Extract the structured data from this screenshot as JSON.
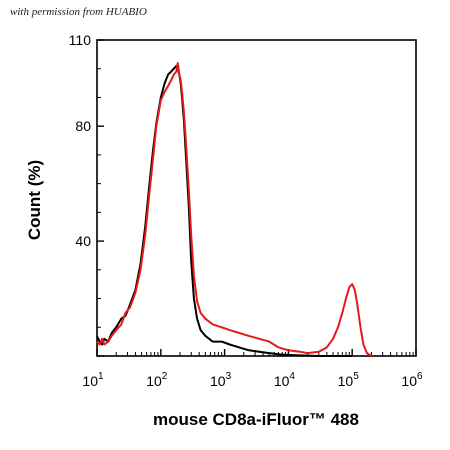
{
  "credit": "with permission from HUABIO",
  "chart_data": {
    "type": "line",
    "xlabel": "mouse CD8a-iFluor™ 488",
    "ylabel": "Count (%)",
    "x_scale": "log",
    "xlim": [
      10,
      1000000
    ],
    "ylim": [
      0,
      110
    ],
    "xticks": [
      10,
      100,
      1000,
      10000,
      100000,
      1000000
    ],
    "xtick_labels": [
      {
        "base": "10",
        "exp": "1"
      },
      {
        "base": "10",
        "exp": "2"
      },
      {
        "base": "10",
        "exp": "3"
      },
      {
        "base": "10",
        "exp": "4"
      },
      {
        "base": "10",
        "exp": "5"
      },
      {
        "base": "10",
        "exp": "6"
      }
    ],
    "yticks": [
      0,
      40,
      80,
      110
    ],
    "ytick_labels": [
      "",
      "40",
      "80",
      "110"
    ],
    "grid": false,
    "series": [
      {
        "color": "#000000",
        "x": [
          10,
          11,
          12,
          13,
          15,
          17,
          20,
          24,
          28,
          33,
          40,
          48,
          57,
          65,
          75,
          85,
          100,
          115,
          130,
          145,
          160,
          175,
          185,
          195,
          205,
          215,
          230,
          250,
          275,
          300,
          330,
          370,
          420,
          500,
          650,
          900,
          1200,
          1700,
          2400,
          3500,
          5000,
          8000,
          15000,
          30000,
          100000
        ],
        "y": [
          7,
          5,
          4,
          6,
          5,
          8,
          10,
          13,
          14,
          18,
          23,
          32,
          45,
          58,
          71,
          81,
          90,
          95,
          98,
          99,
          100,
          101,
          100,
          98,
          95,
          90,
          82,
          68,
          52,
          33,
          20,
          13,
          9,
          7,
          5,
          5,
          4,
          3,
          2,
          1.5,
          1,
          0.5,
          0.2,
          0,
          0
        ]
      },
      {
        "color": "#e41a1c",
        "x": [
          10,
          11,
          12,
          13,
          15,
          17,
          20,
          24,
          28,
          33,
          40,
          48,
          57,
          65,
          75,
          85,
          100,
          115,
          130,
          145,
          160,
          175,
          185,
          195,
          205,
          215,
          230,
          250,
          275,
          300,
          330,
          370,
          420,
          500,
          650,
          900,
          1200,
          1700,
          2400,
          3500,
          5000,
          7000,
          10000,
          15000,
          20000,
          30000,
          40000,
          50000,
          60000,
          70000,
          80000,
          90000,
          100000,
          110000,
          120000,
          135000,
          150000,
          170000,
          200000
        ],
        "y": [
          5,
          4,
          6,
          4,
          5,
          7,
          9,
          11,
          15,
          17,
          22,
          30,
          42,
          55,
          68,
          80,
          89,
          92,
          94,
          96,
          98,
          99,
          102,
          98,
          96,
          92,
          85,
          73,
          58,
          42,
          28,
          19,
          15,
          13,
          11,
          10,
          9,
          8,
          7,
          6,
          5,
          3,
          2,
          1.5,
          1,
          1.5,
          3,
          6,
          10,
          15,
          20,
          24,
          25,
          23,
          18,
          10,
          4,
          1,
          0
        ]
      }
    ]
  }
}
